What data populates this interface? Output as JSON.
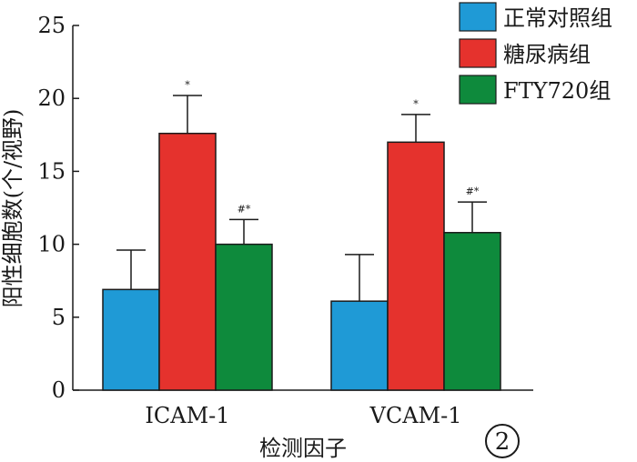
{
  "figure_label": "2",
  "chart_data": {
    "type": "bar",
    "title": "",
    "xlabel": "检测因子",
    "ylabel": "阳性细胞数(个/视野)",
    "categories": [
      "ICAM-1",
      "VCAM-1"
    ],
    "ylim": [
      0,
      25
    ],
    "yticks": [
      "0",
      "5",
      "10",
      "15",
      "20",
      "25"
    ],
    "series": [
      {
        "name": "正常对照组",
        "color": "#1f9ad6",
        "values": [
          6.9,
          6.1
        ],
        "errors": [
          2.7,
          3.2
        ],
        "annotations": [
          "",
          ""
        ]
      },
      {
        "name": "糖尿病组",
        "color": "#e5322d",
        "values": [
          17.6,
          17.0
        ],
        "errors": [
          2.6,
          1.9
        ],
        "annotations": [
          "*",
          "*"
        ]
      },
      {
        "name": "FTY720组",
        "color": "#0e8a3c",
        "values": [
          10.0,
          10.8
        ],
        "errors": [
          1.7,
          2.1
        ],
        "annotations": [
          "#*",
          "#*"
        ]
      }
    ],
    "legend_position": "top-right",
    "grid": false
  }
}
